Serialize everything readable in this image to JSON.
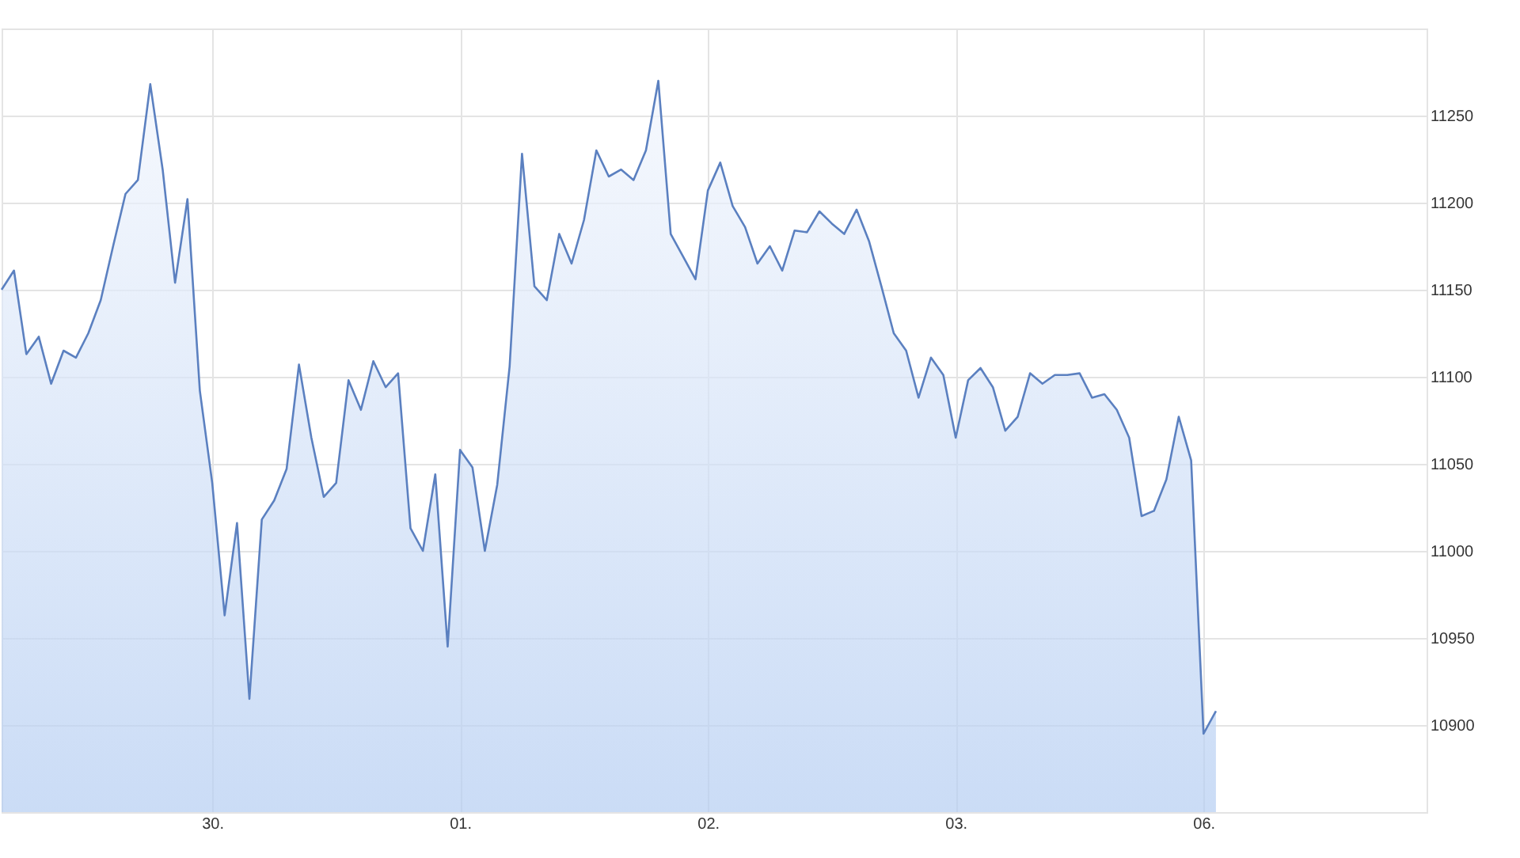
{
  "chart_data": {
    "type": "area",
    "categories": [
      null,
      null,
      null,
      null,
      null,
      null,
      null,
      null,
      null,
      null,
      null,
      null,
      null,
      null,
      null,
      null,
      null,
      "30.",
      null,
      null,
      null,
      null,
      null,
      null,
      null,
      null,
      null,
      null,
      null,
      null,
      null,
      null,
      null,
      null,
      null,
      null,
      null,
      "01.",
      null,
      null,
      null,
      null,
      null,
      null,
      null,
      null,
      null,
      null,
      null,
      null,
      null,
      null,
      null,
      null,
      null,
      null,
      null,
      "02.",
      null,
      null,
      null,
      null,
      null,
      null,
      null,
      null,
      null,
      null,
      null,
      null,
      null,
      null,
      null,
      null,
      null,
      null,
      null,
      "03.",
      null,
      null,
      null,
      null,
      null,
      null,
      null,
      null,
      null,
      null,
      null,
      null,
      null,
      null,
      null,
      null,
      null,
      null,
      null,
      "06.",
      null,
      null,
      null,
      null,
      null,
      null,
      null,
      null,
      null,
      null,
      null,
      null,
      null,
      null,
      null,
      null,
      null,
      null
    ],
    "series": [
      {
        "color": "#5b80c0",
        "values": [
          11150,
          11161,
          11113,
          11123,
          11096,
          11115,
          11111,
          11125,
          11144,
          11175,
          11205,
          11213,
          11268,
          11219,
          11154,
          11202,
          11092,
          11039,
          10963,
          11016,
          10915,
          11018,
          11029,
          11047,
          11107,
          11065,
          11031,
          11039,
          11098,
          11081,
          11109,
          11094,
          11102,
          11013,
          11000,
          11044,
          10945,
          11058,
          11048,
          11000,
          11038,
          11106,
          11228,
          11152,
          11144,
          11182,
          11165,
          11190,
          11230,
          11215,
          11219,
          11213,
          11230,
          11270,
          11182,
          11169,
          11156,
          11207,
          11223,
          11198,
          11186,
          11165,
          11175,
          11161,
          11184,
          11183,
          11195,
          11188,
          11182,
          11196,
          11178,
          11152,
          11125,
          11115,
          11088,
          11111,
          11101,
          11065,
          11098,
          11105,
          11094,
          11069,
          11077,
          11102,
          11096,
          11101,
          11101,
          11102,
          11088,
          11090,
          11081,
          11065,
          11020,
          11023,
          11041,
          11077,
          11052,
          10895,
          10908,
          null,
          null,
          null,
          null,
          null,
          null,
          null,
          null,
          null,
          null,
          null,
          null,
          null,
          null,
          null,
          null,
          null
        ]
      }
    ],
    "ylim": [
      10850,
      11300
    ],
    "yticks": [
      10900,
      10950,
      11000,
      11050,
      11100,
      11150,
      11200,
      11250
    ],
    "grid": true
  }
}
